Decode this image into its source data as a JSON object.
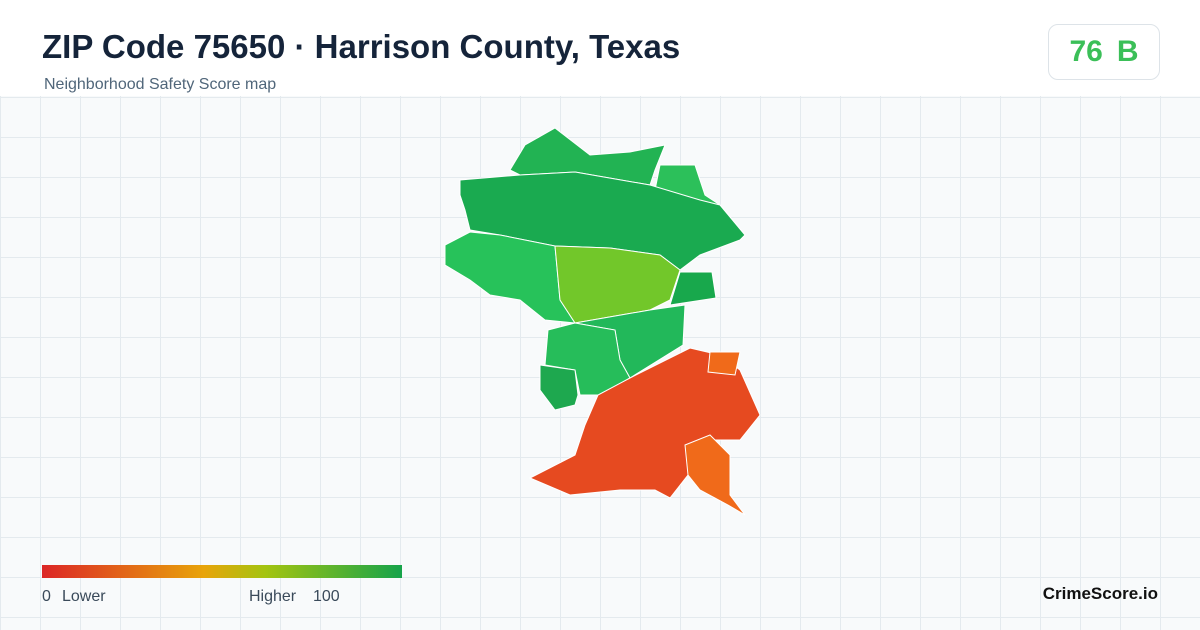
{
  "header": {
    "title": "ZIP Code 75650 · Harrison County, Texas",
    "subtitle": "Neighborhood Safety Score map"
  },
  "score": {
    "value": "76",
    "grade": "B"
  },
  "legend": {
    "min": "0",
    "min_label": "Lower",
    "max_label": "Higher",
    "max": "100"
  },
  "brand": "CrimeScore.io"
}
